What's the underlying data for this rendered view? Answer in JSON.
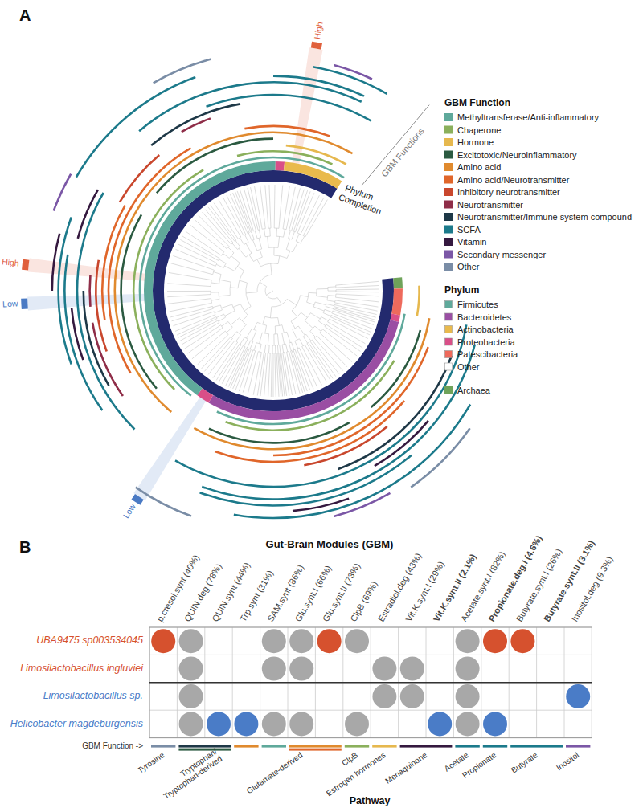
{
  "chart_data": [
    {
      "type": "circular_tree",
      "panel_label": "A",
      "thetalim": [
        0,
        360
      ],
      "ring_labels": {
        "gbm": "GBM Functions",
        "phylum": "Phylum",
        "completion": "Completion"
      },
      "legend_title": "GBM Function",
      "functions": [
        {
          "name": "Methyltransferase/Anti-inflammatory",
          "color": "#5fa99b"
        },
        {
          "name": "Chaperone",
          "color": "#8bb05c"
        },
        {
          "name": "Hormone",
          "color": "#e6b84e"
        },
        {
          "name": "Excitotoxic/Neuroinflammatory",
          "color": "#2b5a41"
        },
        {
          "name": "Amino acid",
          "color": "#e08a2e"
        },
        {
          "name": "Amino acid/Neurotransmitter",
          "color": "#e0662a"
        },
        {
          "name": "Inhibitory neurotransmitter",
          "color": "#c9472d"
        },
        {
          "name": "Neurotransmitter",
          "color": "#8f2d48"
        },
        {
          "name": "Neurotransmitter/Immune system compound",
          "color": "#1e3847"
        },
        {
          "name": "SCFA",
          "color": "#1c7a8b"
        },
        {
          "name": "Vitamin",
          "color": "#35193f"
        },
        {
          "name": "Secondary messenger",
          "color": "#7b57a6"
        },
        {
          "name": "Other",
          "color": "#7a8da6"
        }
      ],
      "phylum_legend_title": "Phylum",
      "phyla": [
        {
          "name": "Firmicutes",
          "color": "#5fa99b"
        },
        {
          "name": "Bacteroidetes",
          "color": "#9a4ea3"
        },
        {
          "name": "Actinobacteria",
          "color": "#e9ba4d"
        },
        {
          "name": "Proteobacteria",
          "color": "#d94f88"
        },
        {
          "name": "Patescibacteria",
          "color": "#ee6a5c"
        },
        {
          "name": "Other",
          "color": "#ffffff"
        }
      ],
      "archaea": {
        "name": "Archaea",
        "color": "#6fa35a"
      },
      "completion_range": [
        84,
        392
      ],
      "phylum_segments": [
        {
          "phylum": "Archaea",
          "range": [
            84,
            89
          ]
        },
        {
          "phylum": "Patescibacteria",
          "range": [
            89,
            101
          ]
        },
        {
          "phylum": "Proteobacteria",
          "range": [
            101,
            104
          ]
        },
        {
          "phylum": "Bacteroidetes",
          "range": [
            104,
            210
          ]
        },
        {
          "phylum": "Proteobacteria",
          "range": [
            210,
            216
          ]
        },
        {
          "phylum": "Firmicutes",
          "range": [
            216,
            361
          ]
        },
        {
          "phylum": "Proteobacteria",
          "range": [
            361,
            365
          ]
        },
        {
          "phylum": "Actinobacteria",
          "range": [
            365,
            392
          ]
        }
      ],
      "rings": [
        {
          "function": "Methyltransferase/Anti-inflammatory",
          "segments": [
            [
              100,
              205
            ],
            [
              218,
              392
            ]
          ]
        },
        {
          "function": "Chaperone",
          "segments": [
            [
              120,
              200
            ],
            [
              225,
              330
            ],
            [
              345,
              385
            ]
          ]
        },
        {
          "function": "Hormone",
          "segments": [
            [
              88,
              100
            ],
            [
              365,
              390
            ]
          ]
        },
        {
          "function": "Excitotoxic/Neuroinflammatory",
          "segments": [
            [
              105,
              140
            ],
            [
              150,
              205
            ],
            [
              230,
              300
            ],
            [
              310,
              360
            ]
          ]
        },
        {
          "function": "Amino acid",
          "segments": [
            [
              100,
              210
            ],
            [
              220,
              390
            ]
          ]
        },
        {
          "function": "Amino acid/Neurotransmitter",
          "segments": [
            [
              110,
              180
            ],
            [
              240,
              330
            ],
            [
              350,
              380
            ]
          ]
        },
        {
          "function": "Amino acid/Neurotransmitter",
          "segments": [
            [
              130,
              200
            ],
            [
              260,
              300
            ]
          ]
        },
        {
          "function": "Inhibitory neurotransmitter",
          "segments": [
            [
              140,
              170
            ],
            [
              250,
              280
            ],
            [
              300,
              320
            ]
          ]
        },
        {
          "function": "Neurotransmitter",
          "segments": [
            [
              235,
              260
            ],
            [
              265,
              275
            ],
            [
              330,
              340
            ]
          ]
        },
        {
          "function": "Neurotransmitter/Immune system compound",
          "segments": [
            [
              110,
              160
            ],
            [
              240,
              270
            ],
            [
              320,
              350
            ]
          ]
        },
        {
          "function": "SCFA",
          "segments": [
            [
              100,
              210
            ],
            [
              225,
              300
            ],
            [
              340,
              390
            ]
          ]
        },
        {
          "function": "Vitamin",
          "segments": [
            [
              130,
              150
            ],
            [
              250,
              265
            ],
            [
              285,
              300
            ]
          ]
        },
        {
          "function": "SCFA",
          "segments": [
            [
              105,
              200
            ],
            [
              235,
              280
            ],
            [
              320,
              385
            ]
          ]
        },
        {
          "function": "SCFA",
          "segments": [
            [
              140,
              200
            ],
            [
              250,
              290
            ],
            [
              360,
              385
            ]
          ]
        },
        {
          "function": "Vitamin",
          "segments": [
            [
              160,
              175
            ],
            [
              270,
              285
            ]
          ]
        },
        {
          "function": "SCFA",
          "segments": [
            [
              120,
              190
            ],
            [
              300,
              340
            ],
            [
              370,
              390
            ]
          ]
        },
        {
          "function": "Secondary messenger",
          "segments": [
            [
              150,
              165
            ],
            [
              290,
              300
            ],
            [
              375,
              385
            ]
          ]
        },
        {
          "function": "Other",
          "segments": [
            [
              125,
              145
            ],
            [
              200,
              215
            ],
            [
              330,
              345
            ]
          ]
        }
      ],
      "highlights": [
        {
          "label": "High",
          "angle": 10,
          "color": "#e0603c"
        },
        {
          "label": "High",
          "angle": 276,
          "color": "#e0603c"
        },
        {
          "label": "Low",
          "angle": 267,
          "color": "#4a7ac4"
        },
        {
          "label": "Low",
          "angle": 213,
          "color": "#4a7ac4"
        }
      ]
    },
    {
      "type": "dot_matrix",
      "panel_label": "B",
      "title": "Gut-Brain Modules (GBM)",
      "columns": [
        {
          "label": "p.cresol.synt (40%)",
          "bold": false
        },
        {
          "label": "QUIN.deg (78%)",
          "bold": false
        },
        {
          "label": "QUIN.synt (44%)",
          "bold": false
        },
        {
          "label": "Trp.synt (31%)",
          "bold": false
        },
        {
          "label": "SAM.synt (86%)",
          "bold": false
        },
        {
          "label": "Glu.synt.I (66%)",
          "bold": false
        },
        {
          "label": "Glu.synt.II (73%)",
          "bold": false
        },
        {
          "label": "ClpB (69%)",
          "bold": false
        },
        {
          "label": "Estradiol.deg (43%)",
          "bold": false
        },
        {
          "label": "Vit.K.synt.I (29%)",
          "bold": false
        },
        {
          "label": "Vit.K.synt.II (2.1%)",
          "bold": true
        },
        {
          "label": "Acetate.synt.I (82%)",
          "bold": false
        },
        {
          "label": "Propionate.deg.I (4.6%)",
          "bold": true
        },
        {
          "label": "Butyrate.synt.I (26%)",
          "bold": false
        },
        {
          "label": "Butyrate.synt.II (3.1%)",
          "bold": true
        },
        {
          "label": "Inositol.deg (9.3%)",
          "bold": false
        }
      ],
      "rows": [
        {
          "name": "UBA9475 sp003534045",
          "color": "#d6512e"
        },
        {
          "name": "Limosilactobacillus ingluviei",
          "color": "#d6512e"
        },
        {
          "name": "Limosilactobacillus sp.",
          "color": "#4a7cc7"
        },
        {
          "name": "Helicobacter magdeburgensis",
          "color": "#4a7cc7"
        }
      ],
      "present_color": "#a8a8a8",
      "cells": [
        [
          2,
          1,
          0,
          0,
          1,
          1,
          2,
          1,
          0,
          0,
          0,
          1,
          2,
          2,
          0,
          0
        ],
        [
          0,
          1,
          0,
          0,
          1,
          1,
          0,
          0,
          1,
          1,
          0,
          1,
          0,
          0,
          0,
          0
        ],
        [
          0,
          1,
          0,
          0,
          0,
          0,
          0,
          0,
          1,
          1,
          0,
          1,
          0,
          0,
          0,
          2
        ],
        [
          0,
          1,
          2,
          2,
          1,
          1,
          0,
          1,
          0,
          0,
          2,
          1,
          2,
          0,
          0,
          0
        ]
      ],
      "function_bar_label": "GBM Function ->",
      "function_bar": [
        {
          "cols": [
            0,
            0
          ],
          "functions": [
            "Other"
          ]
        },
        {
          "cols": [
            1,
            2
          ],
          "functions": [
            "Neurotransmitter/Immune system compound",
            "Excitotoxic/Neuroinflammatory"
          ]
        },
        {
          "cols": [
            3,
            3
          ],
          "functions": [
            "Amino acid"
          ]
        },
        {
          "cols": [
            4,
            4
          ],
          "functions": [
            "Methyltransferase/Anti-inflammatory"
          ]
        },
        {
          "cols": [
            5,
            6
          ],
          "functions": [
            "Amino acid",
            "Amino acid/Neurotransmitter"
          ]
        },
        {
          "cols": [
            7,
            7
          ],
          "functions": [
            "Chaperone"
          ]
        },
        {
          "cols": [
            8,
            8
          ],
          "functions": [
            "Hormone"
          ]
        },
        {
          "cols": [
            9,
            10
          ],
          "functions": [
            "Vitamin"
          ]
        },
        {
          "cols": [
            11,
            11
          ],
          "functions": [
            "SCFA"
          ]
        },
        {
          "cols": [
            12,
            12
          ],
          "functions": [
            "SCFA"
          ]
        },
        {
          "cols": [
            13,
            14
          ],
          "functions": [
            "SCFA"
          ]
        },
        {
          "cols": [
            15,
            15
          ],
          "functions": [
            "Secondary messenger"
          ]
        }
      ],
      "pathways": [
        {
          "label": [
            "Tyrosine"
          ],
          "cols": [
            0,
            0
          ]
        },
        {
          "label": [
            "Tryptophan/",
            "Tryptophan-derived"
          ],
          "cols": [
            1,
            3
          ]
        },
        {
          "label": [
            "Glutamate-derived"
          ],
          "cols": [
            4,
            6
          ]
        },
        {
          "label": [
            "ClpB"
          ],
          "cols": [
            7,
            7
          ]
        },
        {
          "label": [
            "Estrogen hormones"
          ],
          "cols": [
            8,
            8
          ]
        },
        {
          "label": [
            "Menaquinone"
          ],
          "cols": [
            9,
            10
          ]
        },
        {
          "label": [
            "Acetate"
          ],
          "cols": [
            11,
            11
          ]
        },
        {
          "label": [
            "Propionate"
          ],
          "cols": [
            12,
            12
          ]
        },
        {
          "label": [
            "Butyrate"
          ],
          "cols": [
            13,
            14
          ]
        },
        {
          "label": [
            "Inositol"
          ],
          "cols": [
            15,
            15
          ]
        }
      ],
      "xlabel": "Pathway"
    }
  ]
}
